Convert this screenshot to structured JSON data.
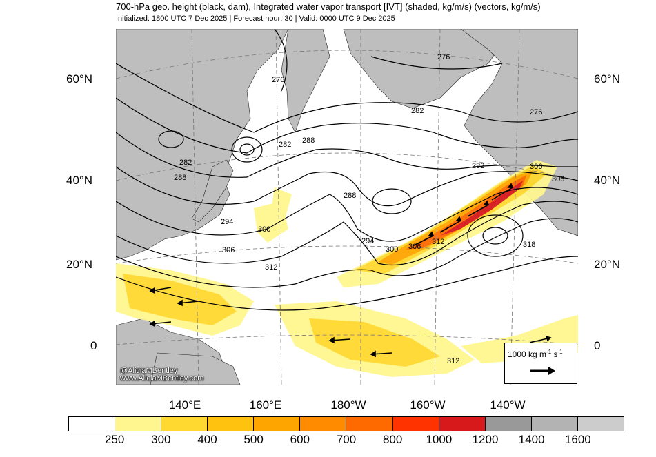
{
  "header": {
    "title": "700-hPa geo. height (black, dam), Integrated water vapor transport [IVT] (shaded, kg/m/s) (vectors, kg/m/s)",
    "subtitle": "Initialized: 1800 UTC 7 Dec 2025 | Forecast hour: 30 | Valid: 0000 UTC 9 Dec 2025"
  },
  "map": {
    "lat_labels": [
      "60°N",
      "40°N",
      "20°N",
      "0"
    ],
    "lon_labels": [
      "140°E",
      "160°E",
      "180°W",
      "160°W",
      "140°W"
    ],
    "contour_labels": [
      "276",
      "276",
      "276",
      "282",
      "282",
      "282",
      "282",
      "288",
      "288",
      "288",
      "294",
      "294",
      "300",
      "300",
      "306",
      "306",
      "306",
      "306",
      "312",
      "312",
      "312",
      "318"
    ],
    "credit_lines": [
      "@AliciaMBentley",
      "www.AliciaMBentley.com"
    ],
    "reference_vector": {
      "label_main": "1000 kg m",
      "sup1": "-1",
      "label_mid": " s",
      "sup2": "-1"
    },
    "colors": {
      "land": "#bebebe",
      "ocean": "#ffffff",
      "contour": "#000000"
    }
  },
  "colorbar": {
    "ticks": [
      "250",
      "300",
      "400",
      "500",
      "600",
      "700",
      "800",
      "1000",
      "1200",
      "1400",
      "1600"
    ],
    "colors": [
      "#ffffff",
      "#fff68f",
      "#ffd92f",
      "#ffc20e",
      "#ffa500",
      "#ff8c00",
      "#ff6a00",
      "#ff3300",
      "#d7191c",
      "#999999",
      "#b3b3b3",
      "#cccccc"
    ]
  }
}
